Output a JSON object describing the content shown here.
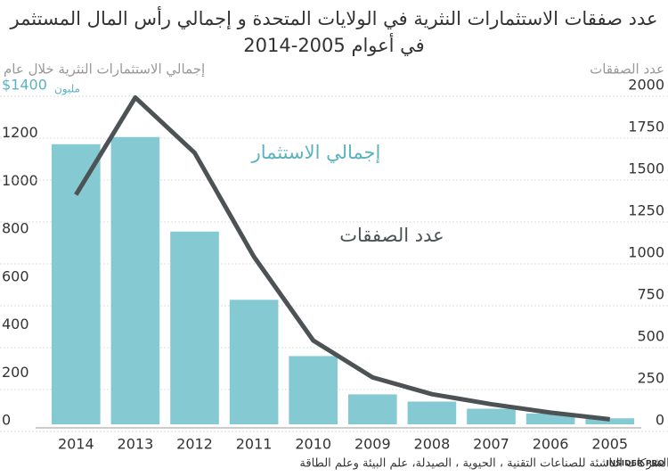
{
  "chart_data": {
    "type": "bar",
    "title": "عدد صفقات الاستثمارات النثرية في الولايات المتحدة و إجمالي رأس المال المستثمر",
    "subtitle": "في أعوام 2005-2014",
    "y_label": "إجمالي الاستثمارات النثرية خلال عام",
    "y_unit": "مليون",
    "y2_label": "عدد الصفقات",
    "categories": [
      "2014",
      "2013",
      "2012",
      "2011",
      "2010",
      "2009",
      "2008",
      "2007",
      "2006",
      "2005"
    ],
    "series": [
      {
        "name": "إجمالي الاستثمار",
        "type": "bar",
        "color": "#85c9d2",
        "values": [
          1170,
          1200,
          805,
          520,
          285,
          125,
          95,
          65,
          45,
          25
        ]
      },
      {
        "name": "عدد الصفقات",
        "type": "line",
        "axis": "y2",
        "color": "#4d5254",
        "values": [
          1370,
          1950,
          1620,
          1000,
          500,
          280,
          180,
          120,
          70,
          30
        ]
      }
    ],
    "ylim": [
      0,
      1400
    ],
    "yticks": [
      0,
      200,
      400,
      600,
      800,
      1000,
      1200,
      {
        "value": 1400,
        "label": "$1400"
      }
    ],
    "y2lim": [
      0,
      2000
    ],
    "y2ticks": [
      0,
      250,
      500,
      750,
      1000,
      1250,
      1500,
      1750,
      2000
    ],
    "grid": true,
    "note": "استبعدت الشركات الناشئة للصناعات التقنية ، الحيوية ، الصيدلة، علم البيئة وعلم الطاقة",
    "source": "INSIDER PRO"
  }
}
